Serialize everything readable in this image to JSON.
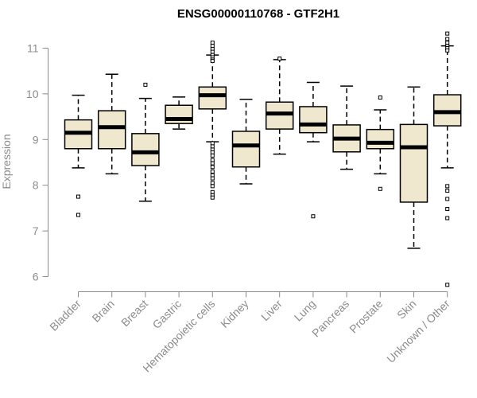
{
  "chart_data": {
    "type": "boxplot",
    "title": "ENSG00000110768 - GTF2H1",
    "xlabel": "",
    "ylabel": "Expression",
    "ylim": [
      5.75,
      11.25
    ],
    "yticks": [
      6,
      7,
      8,
      9,
      10,
      11
    ],
    "grid": false,
    "colors": {
      "box_fill": "#efe8cf",
      "box_stroke": "#000000",
      "axis": "#8c8c8c"
    },
    "categories": [
      "Bladder",
      "Brain",
      "Breast",
      "Gastric",
      "Hematopoietic cells",
      "Kidney",
      "Liver",
      "Lung",
      "Pancreas",
      "Prostate",
      "Skin",
      "Unknown / Other"
    ],
    "boxes": [
      {
        "name": "Bladder",
        "whisker_low": 8.38,
        "q1": 8.8,
        "median": 9.15,
        "q3": 9.43,
        "whisker_high": 9.97,
        "outliers": [
          7.75,
          7.35
        ]
      },
      {
        "name": "Brain",
        "whisker_low": 8.25,
        "q1": 8.8,
        "median": 9.27,
        "q3": 9.63,
        "whisker_high": 10.43,
        "outliers": []
      },
      {
        "name": "Breast",
        "whisker_low": 7.65,
        "q1": 8.43,
        "median": 8.72,
        "q3": 9.13,
        "whisker_high": 9.9,
        "outliers": [
          10.2
        ]
      },
      {
        "name": "Gastric",
        "whisker_low": 9.23,
        "q1": 9.35,
        "median": 9.45,
        "q3": 9.75,
        "whisker_high": 9.93,
        "outliers": []
      },
      {
        "name": "Hematopoietic cells",
        "whisker_low": 8.95,
        "q1": 9.67,
        "median": 9.97,
        "q3": 10.15,
        "whisker_high": 10.85,
        "outliers": [
          11.12,
          11.05,
          10.98,
          10.92,
          10.85,
          10.8,
          10.75,
          10.72,
          8.92,
          8.85,
          8.78,
          8.72,
          8.65,
          8.55,
          8.48,
          8.4,
          8.3,
          8.22,
          8.15,
          8.05,
          7.98,
          7.85,
          7.78,
          7.73
        ]
      },
      {
        "name": "Kidney",
        "whisker_low": 8.03,
        "q1": 8.4,
        "median": 8.87,
        "q3": 9.18,
        "whisker_high": 9.88,
        "outliers": []
      },
      {
        "name": "Liver",
        "whisker_low": 8.68,
        "q1": 9.23,
        "median": 9.57,
        "q3": 9.82,
        "whisker_high": 10.75,
        "outliers": [
          10.77
        ]
      },
      {
        "name": "Lung",
        "whisker_low": 8.95,
        "q1": 9.15,
        "median": 9.33,
        "q3": 9.72,
        "whisker_high": 10.25,
        "outliers": [
          7.32
        ]
      },
      {
        "name": "Pancreas",
        "whisker_low": 8.35,
        "q1": 8.73,
        "median": 9.02,
        "q3": 9.32,
        "whisker_high": 10.17,
        "outliers": []
      },
      {
        "name": "Prostate",
        "whisker_low": 8.25,
        "q1": 8.8,
        "median": 8.93,
        "q3": 9.22,
        "whisker_high": 9.65,
        "outliers": [
          9.92,
          7.92
        ]
      },
      {
        "name": "Skin",
        "whisker_low": 6.62,
        "q1": 7.63,
        "median": 8.83,
        "q3": 9.33,
        "whisker_high": 10.15,
        "outliers": []
      },
      {
        "name": "Unknown / Other",
        "whisker_low": 8.38,
        "q1": 9.3,
        "median": 9.6,
        "q3": 9.98,
        "whisker_high": 11.05,
        "outliers": [
          11.32,
          11.2,
          11.12,
          11.05,
          11.0,
          10.95,
          7.98,
          7.88,
          7.7,
          7.48,
          7.28,
          5.82
        ]
      }
    ]
  }
}
